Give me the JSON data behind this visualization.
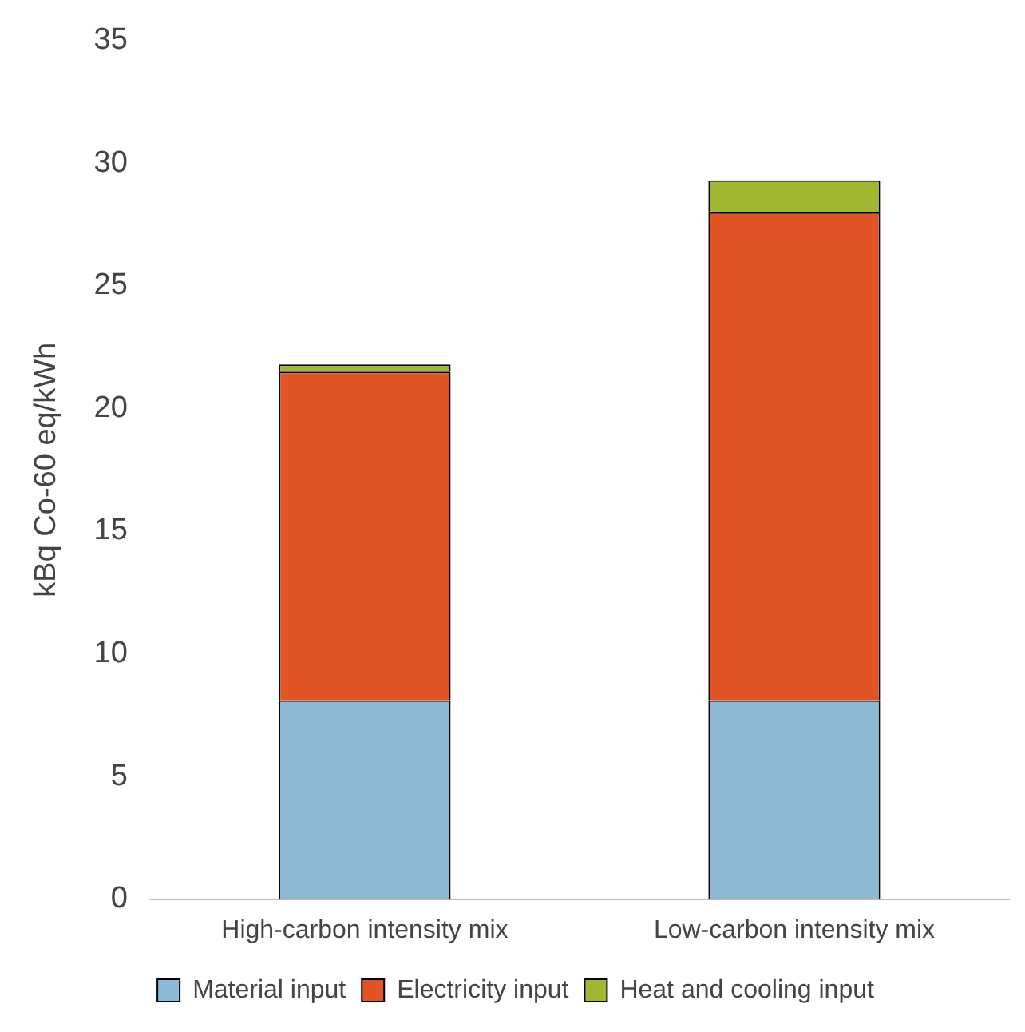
{
  "chart_data": {
    "type": "bar",
    "stacked": true,
    "ylabel": "kBq Co-60 eq/kWh",
    "categories": [
      "High-carbon intensity mix",
      "Low-carbon intensity mix"
    ],
    "series": [
      {
        "name": "Material input",
        "color": "#8dbad6",
        "values": [
          8.1,
          8.1
        ]
      },
      {
        "name": "Electricity input",
        "color": "#e05426",
        "values": [
          13.4,
          19.9
        ]
      },
      {
        "name": "Heat and cooling input",
        "color": "#a0b82f",
        "values": [
          0.3,
          1.3
        ]
      }
    ],
    "ylim": [
      0,
      35
    ],
    "yticks": [
      0,
      5,
      10,
      15,
      20,
      25,
      30,
      35
    ],
    "grid": false,
    "legend": "bottom"
  }
}
